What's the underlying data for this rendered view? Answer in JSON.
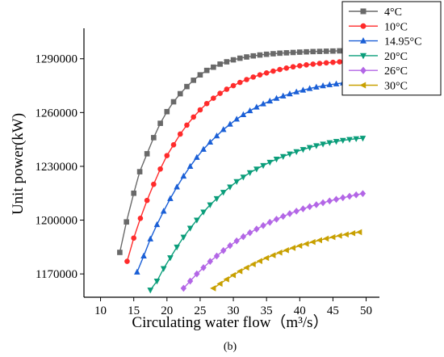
{
  "chart_data": {
    "type": "line",
    "xlabel": "Circulating water flow（m³/s）",
    "ylabel": "Unit power(kW)",
    "caption": "(b)",
    "xlim": [
      7.5,
      52
    ],
    "ylim": [
      1157000,
      1307000
    ],
    "xticks": [
      10,
      15,
      20,
      25,
      30,
      35,
      40,
      45,
      50
    ],
    "yticks": [
      1170000,
      1200000,
      1230000,
      1260000,
      1290000
    ],
    "legend_position": "top-right",
    "series": [
      {
        "name": "4°C",
        "color": "#696969",
        "marker": "square",
        "x": [
          12.9,
          13.9,
          15,
          15.9,
          17,
          18,
          19,
          20,
          21,
          22,
          23,
          24,
          25,
          26,
          27,
          28,
          29,
          30,
          31,
          32,
          33,
          34,
          35,
          36,
          37,
          38,
          39,
          40,
          41,
          42,
          43,
          44,
          45,
          46,
          47,
          48,
          49
        ],
        "y": [
          1182000,
          1199000,
          1215000,
          1227000,
          1237000,
          1246000,
          1254000,
          1260500,
          1266000,
          1270500,
          1274500,
          1278000,
          1281000,
          1283500,
          1285300,
          1287000,
          1288300,
          1289400,
          1290300,
          1291000,
          1291600,
          1292100,
          1292500,
          1292800,
          1293100,
          1293300,
          1293500,
          1293700,
          1293850,
          1294000,
          1294100,
          1294200,
          1294300,
          1294400,
          1294450,
          1294500,
          1294550
        ]
      },
      {
        "name": "10°C",
        "color": "#ff2b2b",
        "marker": "circle",
        "x": [
          14,
          15,
          16,
          17,
          18,
          19,
          20,
          21,
          22,
          23,
          24,
          25,
          26,
          27,
          28,
          29,
          30,
          31,
          32,
          33,
          34,
          35,
          36,
          37,
          38,
          39,
          40,
          41,
          42,
          43,
          44,
          45,
          46,
          47,
          48,
          49
        ],
        "y": [
          1177000,
          1190000,
          1201000,
          1211000,
          1220000,
          1228500,
          1236000,
          1242000,
          1248000,
          1253000,
          1257500,
          1261500,
          1265000,
          1268000,
          1270700,
          1273000,
          1275000,
          1276800,
          1278400,
          1279800,
          1281000,
          1282100,
          1283100,
          1284000,
          1284800,
          1285500,
          1286100,
          1286600,
          1287000,
          1287400,
          1287700,
          1288000,
          1288300,
          1288500,
          1288700,
          1288900
        ]
      },
      {
        "name": "14.95°C",
        "color": "#1a5fd6",
        "marker": "triangle-up",
        "x": [
          15.5,
          16.5,
          17.5,
          18.5,
          19.5,
          20.5,
          21.5,
          22.5,
          23.5,
          24.5,
          25.5,
          26.5,
          27.5,
          28.5,
          29.5,
          30.5,
          31.5,
          32.5,
          33.5,
          34.5,
          35.5,
          36.5,
          37.5,
          38.5,
          39.5,
          40.5,
          41.5,
          42.5,
          43.5,
          44.5,
          45.5,
          46.5,
          47.5,
          48.5,
          49.5
        ],
        "y": [
          1171000,
          1180000,
          1189500,
          1197500,
          1205000,
          1212000,
          1218500,
          1224500,
          1230000,
          1235000,
          1239500,
          1243500,
          1247000,
          1250500,
          1253500,
          1256300,
          1258800,
          1261000,
          1263000,
          1264800,
          1266400,
          1267900,
          1269200,
          1270400,
          1271500,
          1272500,
          1273400,
          1274200,
          1274900,
          1275500,
          1276000,
          1276500,
          1276900,
          1277200,
          1277400
        ]
      },
      {
        "name": "20°C",
        "color": "#0a9d7a",
        "marker": "triangle-down",
        "x": [
          17.5,
          18.5,
          19.5,
          20.5,
          21.5,
          22.5,
          23.5,
          24.5,
          25.5,
          26.5,
          27.5,
          28.5,
          29.5,
          30.5,
          31.5,
          32.5,
          33.5,
          34.5,
          35.5,
          36.5,
          37.5,
          38.5,
          39.5,
          40.5,
          41.5,
          42.5,
          43.5,
          44.5,
          45.5,
          46.5,
          47.5,
          48.5,
          49.5
        ],
        "y": [
          1161000,
          1166000,
          1173000,
          1179000,
          1185000,
          1190500,
          1195500,
          1200000,
          1204500,
          1208500,
          1212000,
          1215500,
          1218500,
          1221500,
          1224000,
          1226500,
          1228500,
          1230500,
          1232300,
          1234000,
          1235500,
          1236900,
          1238200,
          1239400,
          1240500,
          1241500,
          1242400,
          1243200,
          1243900,
          1244500,
          1245000,
          1245400,
          1245700
        ]
      },
      {
        "name": "26°C",
        "color": "#b366e6",
        "marker": "diamond",
        "x": [
          22.5,
          23.5,
          24.5,
          25.5,
          26.5,
          27.5,
          28.5,
          29.5,
          30.5,
          31.5,
          32.5,
          33.5,
          34.5,
          35.5,
          36.5,
          37.5,
          38.5,
          39.5,
          40.5,
          41.5,
          42.5,
          43.5,
          44.5,
          45.5,
          46.5,
          47.5,
          48.5,
          49.5
        ],
        "y": [
          1162000,
          1166000,
          1170000,
          1173500,
          1177000,
          1180000,
          1183000,
          1185800,
          1188400,
          1190800,
          1193000,
          1195000,
          1197000,
          1198800,
          1200500,
          1202100,
          1203600,
          1205000,
          1206300,
          1207500,
          1208600,
          1209700,
          1210700,
          1211600,
          1212500,
          1213300,
          1214100,
          1214800
        ]
      },
      {
        "name": "30°C",
        "color": "#c8a000",
        "marker": "triangle-left",
        "x": [
          27,
          28,
          29,
          30,
          31,
          32,
          33,
          34,
          35,
          36,
          37,
          38,
          39,
          40,
          41,
          42,
          43,
          44,
          45,
          46,
          47,
          48,
          49
        ],
        "y": [
          1162000,
          1164500,
          1167000,
          1169300,
          1171500,
          1173500,
          1175400,
          1177200,
          1178900,
          1180400,
          1181900,
          1183200,
          1184500,
          1185700,
          1186800,
          1187800,
          1188800,
          1189700,
          1190500,
          1191300,
          1192000,
          1192700,
          1193300
        ]
      }
    ]
  }
}
